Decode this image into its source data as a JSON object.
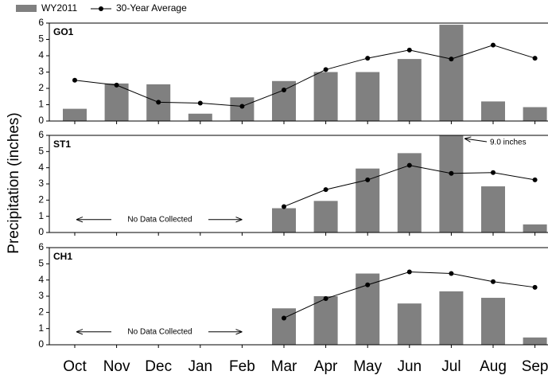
{
  "chart_data": {
    "type": "bar",
    "y_label": "Precipitation (inches)",
    "categories": [
      "Oct",
      "Nov",
      "Dec",
      "Jan",
      "Feb",
      "Mar",
      "Apr",
      "May",
      "Jun",
      "Jul",
      "Aug",
      "Sep"
    ],
    "series": [
      {
        "name": "WY2011",
        "color": "#808080"
      },
      {
        "name": "30-Year Average",
        "color": "#000000"
      }
    ],
    "ylim": [
      0,
      6
    ],
    "yticks": [
      0,
      1,
      2,
      3,
      4,
      5,
      6
    ],
    "panels": [
      {
        "title": "GO1",
        "bars": [
          0.75,
          2.3,
          2.25,
          0.45,
          1.45,
          2.45,
          3.0,
          3.0,
          3.8,
          5.9,
          1.2,
          0.85
        ],
        "line": [
          2.5,
          2.2,
          1.15,
          1.1,
          0.9,
          1.9,
          3.15,
          3.85,
          4.35,
          3.8,
          4.65,
          3.85
        ]
      },
      {
        "title": "ST1",
        "bars": [
          null,
          null,
          null,
          null,
          null,
          1.5,
          1.95,
          3.95,
          4.9,
          9.0,
          2.85,
          0.5
        ],
        "line": [
          null,
          null,
          null,
          null,
          null,
          1.6,
          2.65,
          3.25,
          4.15,
          3.65,
          3.7,
          3.25
        ],
        "no_data_note": "No Data Collected",
        "overflow_note": "9.0 inches"
      },
      {
        "title": "CH1",
        "bars": [
          null,
          null,
          null,
          null,
          null,
          2.25,
          3.0,
          4.4,
          2.55,
          3.3,
          2.9,
          0.45
        ],
        "line": [
          null,
          null,
          null,
          null,
          null,
          1.65,
          2.85,
          3.7,
          4.5,
          4.4,
          3.9,
          3.55
        ],
        "no_data_note": "No Data Collected"
      }
    ]
  }
}
